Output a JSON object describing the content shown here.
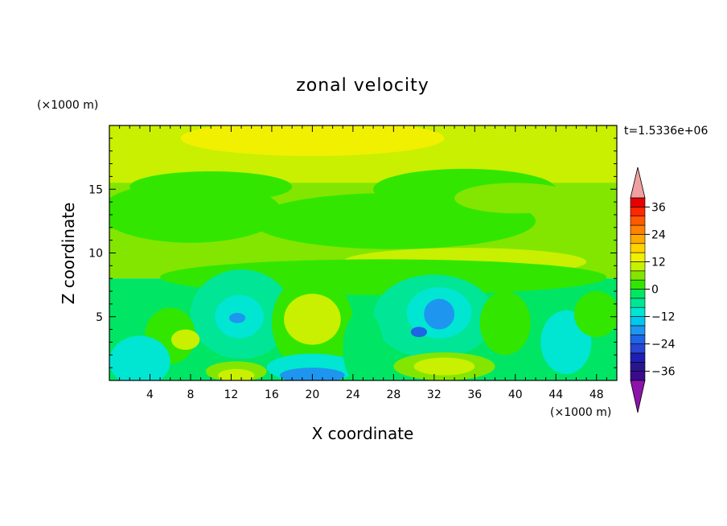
{
  "chart_data": {
    "type": "heatmap",
    "title": "zonal velocity",
    "xlabel": "X coordinate",
    "ylabel": "Z coordinate",
    "x_unit": "(×1000 m)",
    "y_unit": "(×1000 m)",
    "time_label": "t=1.5336e+06",
    "xlim": [
      0,
      50
    ],
    "ylim": [
      0,
      20
    ],
    "x_ticks": [
      "4",
      "8",
      "12",
      "16",
      "20",
      "24",
      "28",
      "32",
      "36",
      "40",
      "44",
      "48"
    ],
    "y_ticks": [
      "5",
      "10",
      "15"
    ],
    "colorbar": {
      "levels": [
        -40,
        -36,
        -32,
        -28,
        -24,
        -20,
        -16,
        -12,
        -8,
        -4,
        0,
        4,
        8,
        12,
        16,
        20,
        24,
        28,
        32,
        36,
        40
      ],
      "tick_labels": [
        "36",
        "24",
        "12",
        "0",
        "−12",
        "−24",
        "−36"
      ],
      "colors": [
        "#3c0a8c",
        "#28168c",
        "#1e1eb4",
        "#2846d2",
        "#1e64e6",
        "#1e96f0",
        "#00c8f0",
        "#00e6d2",
        "#00e696",
        "#00e664",
        "#32e600",
        "#82e600",
        "#c8f000",
        "#f0f000",
        "#ffd200",
        "#ffaa00",
        "#ff8200",
        "#ff5a00",
        "#ff2800",
        "#e60000"
      ],
      "under_color": "#8c14aa",
      "over_color": "#f0a0a0"
    },
    "regions": [
      {
        "shape": "rect",
        "x": [
          0,
          50
        ],
        "z": [
          8,
          20
        ],
        "u": 5
      },
      {
        "shape": "rect",
        "x": [
          0,
          50
        ],
        "z": [
          15.5,
          20
        ],
        "u": 9
      },
      {
        "shape": "rect",
        "x": [
          0,
          50
        ],
        "z": [
          0,
          8
        ],
        "u": -4
      },
      {
        "shape": "ellipse",
        "cx": 20,
        "cz": 19,
        "rx": 13,
        "rz": 1.4,
        "u": 13
      },
      {
        "shape": "ellipse",
        "cx": 8,
        "cz": 13.2,
        "rx": 9,
        "rz": 2.4,
        "u": 3
      },
      {
        "shape": "ellipse",
        "cx": 28,
        "cz": 12.5,
        "rx": 14,
        "rz": 2.2,
        "u": 2
      },
      {
        "shape": "ellipse",
        "cx": 35,
        "cz": 15,
        "rx": 9,
        "rz": 1.6,
        "u": 2
      },
      {
        "shape": "ellipse",
        "cx": 40,
        "cz": 14.3,
        "rx": 6,
        "rz": 1.2,
        "u": 5
      },
      {
        "shape": "ellipse",
        "cx": 10,
        "cz": 15.2,
        "rx": 8,
        "rz": 1.2,
        "u": 2
      },
      {
        "shape": "ellipse",
        "cx": 35,
        "cz": 9.3,
        "rx": 12,
        "rz": 1.1,
        "u": 8
      },
      {
        "shape": "ellipse",
        "cx": 6,
        "cz": 9.6,
        "rx": 6,
        "rz": 1.0,
        "u": 6
      },
      {
        "shape": "ellipse",
        "cx": 27,
        "cz": 8.1,
        "rx": 22,
        "rz": 1.4,
        "u": 1
      },
      {
        "shape": "ellipse",
        "cx": 13,
        "cz": 5.2,
        "rx": 5,
        "rz": 3.5,
        "u": -8
      },
      {
        "shape": "ellipse",
        "cx": 12.8,
        "cz": 5.0,
        "rx": 2.4,
        "rz": 1.7,
        "u": -12
      },
      {
        "shape": "ellipse",
        "cx": 12.6,
        "cz": 4.9,
        "rx": 0.8,
        "rz": 0.4,
        "u": -17
      },
      {
        "shape": "ellipse",
        "cx": 20,
        "cz": 4.5,
        "rx": 4.0,
        "rz": 3.8,
        "u": 3
      },
      {
        "shape": "ellipse",
        "cx": 20,
        "cz": 4.8,
        "rx": 2.8,
        "rz": 2.0,
        "u": 9
      },
      {
        "shape": "ellipse",
        "cx": 20,
        "cz": 1.0,
        "rx": 4.5,
        "rz": 1.1,
        "u": -12
      },
      {
        "shape": "ellipse",
        "cx": 20,
        "cz": 0.4,
        "rx": 3.2,
        "rz": 0.6,
        "u": -18
      },
      {
        "shape": "ellipse",
        "cx": 32,
        "cz": 5.0,
        "rx": 6,
        "rz": 3.3,
        "u": -8
      },
      {
        "shape": "ellipse",
        "cx": 32.5,
        "cz": 5.3,
        "rx": 3.2,
        "rz": 2.0,
        "u": -12
      },
      {
        "shape": "ellipse",
        "cx": 32.5,
        "cz": 5.2,
        "rx": 1.5,
        "rz": 1.2,
        "u": -18
      },
      {
        "shape": "ellipse",
        "cx": 30.5,
        "cz": 3.8,
        "rx": 0.8,
        "rz": 0.4,
        "u": -24
      },
      {
        "shape": "ellipse",
        "cx": 33,
        "cz": 1.1,
        "rx": 5,
        "rz": 1.1,
        "u": 6
      },
      {
        "shape": "ellipse",
        "cx": 33,
        "cz": 1.1,
        "rx": 3,
        "rz": 0.7,
        "u": 10
      },
      {
        "shape": "ellipse",
        "cx": 6,
        "cz": 3.5,
        "rx": 2.5,
        "rz": 2.2,
        "u": 2
      },
      {
        "shape": "ellipse",
        "cx": 7.5,
        "cz": 3.2,
        "rx": 1.4,
        "rz": 0.8,
        "u": 9
      },
      {
        "shape": "ellipse",
        "cx": 3,
        "cz": 1.5,
        "rx": 3,
        "rz": 2.0,
        "u": -9
      },
      {
        "shape": "ellipse",
        "cx": 12.5,
        "cz": 0.7,
        "rx": 3,
        "rz": 0.8,
        "u": 6
      },
      {
        "shape": "ellipse",
        "cx": 12.5,
        "cz": 0.4,
        "rx": 1.8,
        "rz": 0.5,
        "u": 10
      },
      {
        "shape": "ellipse",
        "cx": 39,
        "cz": 4.5,
        "rx": 2.5,
        "rz": 2.5,
        "u": 1
      },
      {
        "shape": "ellipse",
        "cx": 45,
        "cz": 3.0,
        "rx": 2.5,
        "rz": 2.5,
        "u": -10
      },
      {
        "shape": "ellipse",
        "cx": 48,
        "cz": 5.2,
        "rx": 2.2,
        "rz": 1.8,
        "u": 2
      },
      {
        "shape": "ellipse",
        "cx": 25,
        "cz": 2.5,
        "rx": 2.0,
        "rz": 3.0,
        "u": -2
      }
    ]
  }
}
